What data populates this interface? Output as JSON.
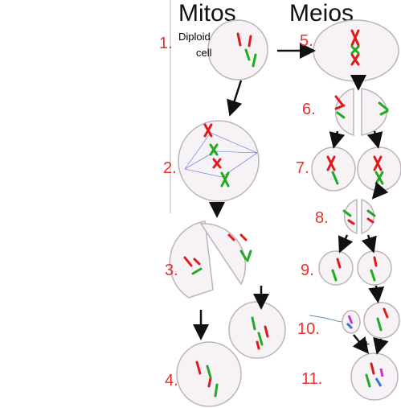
{
  "headers": {
    "mitosis": "Mitos",
    "meiosis": "Meios"
  },
  "cell_label": {
    "line1": "Diploid",
    "line2": "cell"
  },
  "steps": {
    "s1": "1.",
    "s2": "2.",
    "s3": "3.",
    "s4": "4.",
    "s5": "5.",
    "s6": "6.",
    "s7": "7.",
    "s8": "8.",
    "s9": "9.",
    "s10": "10.",
    "s11": "11."
  },
  "plus": "+"
}
